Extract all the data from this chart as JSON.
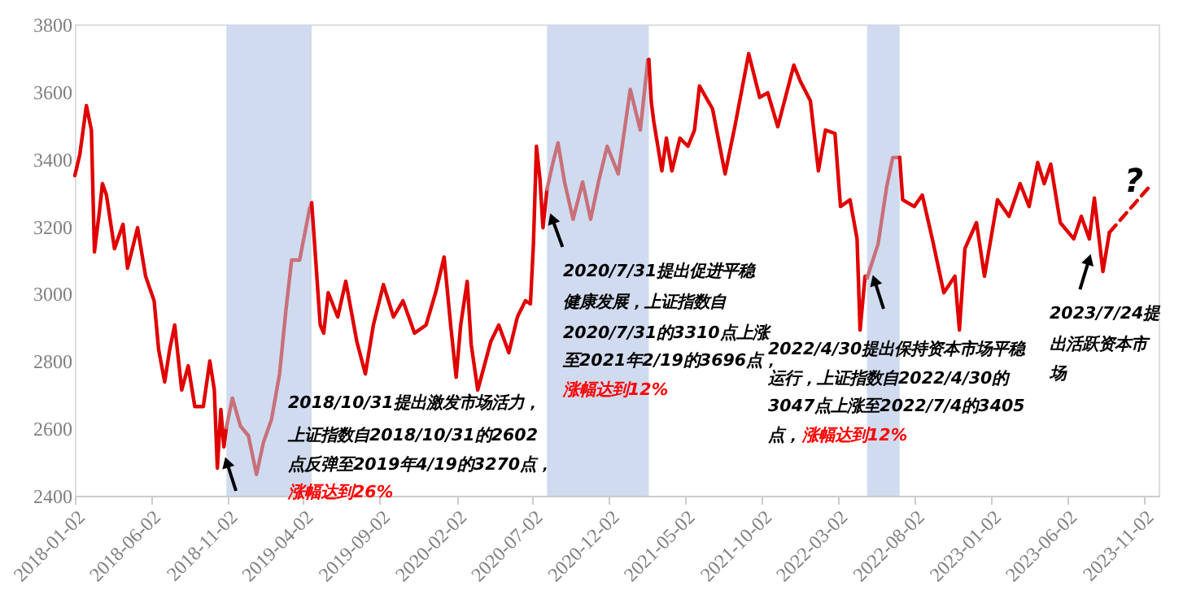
{
  "chart_data": {
    "type": "line",
    "xlim": [
      "2018-01-02",
      "2023-12-02"
    ],
    "ylim": [
      2400,
      3800
    ],
    "xticks": [
      "2018-01-02",
      "2018-06-02",
      "2018-11-02",
      "2019-04-02",
      "2019-09-02",
      "2020-02-02",
      "2020-07-02",
      "2020-12-02",
      "2021-05-02",
      "2021-10-02",
      "2022-03-02",
      "2022-08-02",
      "2023-01-02",
      "2023-06-02",
      "2023-11-02"
    ],
    "yticks": [
      2400,
      2600,
      2800,
      3000,
      3200,
      3400,
      3600,
      3800
    ],
    "grid": false,
    "series": [
      {
        "color": "#e00000",
        "x": [
          "2018-01-02",
          "2018-01-12",
          "2018-01-25",
          "2018-02-04",
          "2018-02-10",
          "2018-02-20",
          "2018-02-26",
          "2018-03-06",
          "2018-03-22",
          "2018-04-08",
          "2018-04-17",
          "2018-05-07",
          "2018-05-23",
          "2018-06-09",
          "2018-06-18",
          "2018-06-30",
          "2018-07-10",
          "2018-07-20",
          "2018-08-03",
          "2018-08-16",
          "2018-08-29",
          "2018-09-15",
          "2018-09-28",
          "2018-10-07",
          "2018-10-13",
          "2018-10-20",
          "2018-10-26",
          "2018-10-31"
        ],
        "values": [
          3351,
          3414,
          3559,
          3486,
          3124,
          3245,
          3327,
          3293,
          3134,
          3206,
          3076,
          3196,
          3052,
          2979,
          2834,
          2738,
          2834,
          2907,
          2714,
          2786,
          2665,
          2665,
          2800,
          2714,
          2482,
          2656,
          2545,
          2602
        ]
      },
      {
        "color": "#c8707a",
        "x": [
          "2018-10-31",
          "2018-11-12",
          "2018-11-28",
          "2018-12-14",
          "2018-12-30",
          "2019-01-13",
          "2019-01-29",
          "2019-02-14",
          "2019-02-27",
          "2019-03-10",
          "2019-03-26",
          "2019-04-15",
          "2019-04-19"
        ],
        "values": [
          2602,
          2690,
          2607,
          2578,
          2463,
          2559,
          2627,
          2762,
          2955,
          3100,
          3100,
          3254,
          3270
        ]
      },
      {
        "color": "#e00000",
        "x": [
          "2019-04-19",
          "2019-04-23",
          "2019-05-06",
          "2019-05-13",
          "2019-05-22",
          "2019-06-10",
          "2019-06-26",
          "2019-07-18",
          "2019-08-04",
          "2019-08-20",
          "2019-09-09",
          "2019-09-29",
          "2019-10-18",
          "2019-11-10",
          "2019-12-03",
          "2019-12-22",
          "2020-01-08",
          "2020-01-21",
          "2020-02-01",
          "2020-02-10",
          "2020-02-23",
          "2020-03-02",
          "2020-03-15",
          "2020-03-28",
          "2020-04-10",
          "2020-04-26",
          "2020-05-16",
          "2020-06-02",
          "2020-06-18",
          "2020-06-28",
          "2020-07-04",
          "2020-07-10",
          "2020-07-17",
          "2020-07-23",
          "2020-07-31"
        ],
        "values": [
          3270,
          3187,
          2907,
          2883,
          3003,
          2931,
          3037,
          2858,
          2762,
          2907,
          3027,
          2931,
          2979,
          2883,
          2907,
          3003,
          3109,
          2907,
          2752,
          2907,
          3037,
          2849,
          2714,
          2786,
          2858,
          2907,
          2825,
          2931,
          2979,
          2970,
          3148,
          3438,
          3341,
          3196,
          3310
        ]
      },
      {
        "color": "#c8707a",
        "x": [
          "2020-07-31",
          "2020-08-12",
          "2020-08-22",
          "2020-09-04",
          "2020-09-21",
          "2020-10-10",
          "2020-10-26",
          "2020-11-12",
          "2020-11-28",
          "2020-12-20",
          "2021-01-13",
          "2021-02-02",
          "2021-02-17",
          "2021-02-19"
        ],
        "values": [
          3310,
          3390,
          3448,
          3332,
          3221,
          3332,
          3221,
          3341,
          3438,
          3356,
          3607,
          3486,
          3694,
          3696
        ]
      },
      {
        "color": "#e00000",
        "x": [
          "2021-02-19",
          "2021-02-24",
          "2021-03-01",
          "2021-03-17",
          "2021-03-26",
          "2021-04-06",
          "2021-04-22",
          "2021-05-08",
          "2021-05-21",
          "2021-05-31",
          "2021-06-26",
          "2021-07-21",
          "2021-08-10",
          "2021-09-06",
          "2021-09-28",
          "2021-10-14",
          "2021-11-03",
          "2021-12-05",
          "2021-12-18",
          "2022-01-07",
          "2022-01-23",
          "2022-02-06",
          "2022-02-25",
          "2022-03-08",
          "2022-03-27",
          "2022-04-10",
          "2022-04-16",
          "2022-04-26",
          "2022-04-30"
        ],
        "values": [
          3696,
          3568,
          3510,
          3365,
          3462,
          3365,
          3462,
          3438,
          3486,
          3617,
          3549,
          3356,
          3501,
          3713,
          3583,
          3597,
          3496,
          3679,
          3631,
          3573,
          3365,
          3486,
          3476,
          3259,
          3279,
          3163,
          2892,
          3052,
          3047
        ]
      },
      {
        "color": "#c8707a",
        "x": [
          "2022-04-30",
          "2022-05-22",
          "2022-06-08",
          "2022-06-20",
          "2022-07-04"
        ],
        "values": [
          3047,
          3148,
          3317,
          3404,
          3405
        ]
      },
      {
        "color": "#e00000",
        "x": [
          "2022-07-04",
          "2022-07-10",
          "2022-08-02",
          "2022-08-18",
          "2022-09-07",
          "2022-09-30",
          "2022-10-22",
          "2022-10-31",
          "2022-11-11",
          "2022-12-04",
          "2022-12-20",
          "2023-01-15",
          "2023-02-07",
          "2023-03-01",
          "2023-03-19",
          "2023-04-05",
          "2023-04-18",
          "2023-05-01",
          "2023-05-20",
          "2023-06-16",
          "2023-07-01",
          "2023-07-17",
          "2023-07-27",
          "2023-08-13",
          "2023-08-26"
        ],
        "values": [
          3405,
          3279,
          3259,
          3293,
          3163,
          3003,
          3052,
          2892,
          3134,
          3211,
          3052,
          3279,
          3230,
          3327,
          3259,
          3390,
          3327,
          3385,
          3211,
          3163,
          3230,
          3163,
          3284,
          3066,
          3182
        ]
      },
      {
        "color": "#e00000",
        "line_style": "dashed",
        "x": [
          "2023-08-26",
          "2023-11-19"
        ],
        "values": [
          3182,
          3327
        ]
      }
    ],
    "bands": [
      {
        "axis": "x",
        "from": "2018-10-31",
        "to": "2019-04-19",
        "color": "#d0dbef"
      },
      {
        "axis": "x",
        "from": "2020-07-31",
        "to": "2021-02-19",
        "color": "#d0dbef"
      },
      {
        "axis": "x",
        "from": "2022-04-30",
        "to": "2022-07-04",
        "color": "#d0dbef"
      }
    ],
    "annotations": [
      "2018/10/31提出激发市场活力，",
      "上证指数自2018/10/31的2602",
      "点反弹至2019年4/19的3270点，",
      "涨幅达到26%",
      {
        "text": "2020/7/31提出促进平稳",
        "x": "2020-08-05",
        "y": 3245
      },
      "健康发展，上证指数自",
      "2020/7/31的3310点上涨",
      "至2021年2/19的3696点，",
      "涨幅达到12%",
      "2022/4/30提出保持资本市场平稳",
      "运行，上证指数自2022/4/30的",
      "3047点上涨至2022/7/4的3405",
      "点，",
      "涨幅达到12%",
      {
        "text": "2023/7/24提",
        "x": "2023-07-21",
        "y": 3124
      },
      "出活跃资本市",
      "场",
      "?"
    ]
  }
}
